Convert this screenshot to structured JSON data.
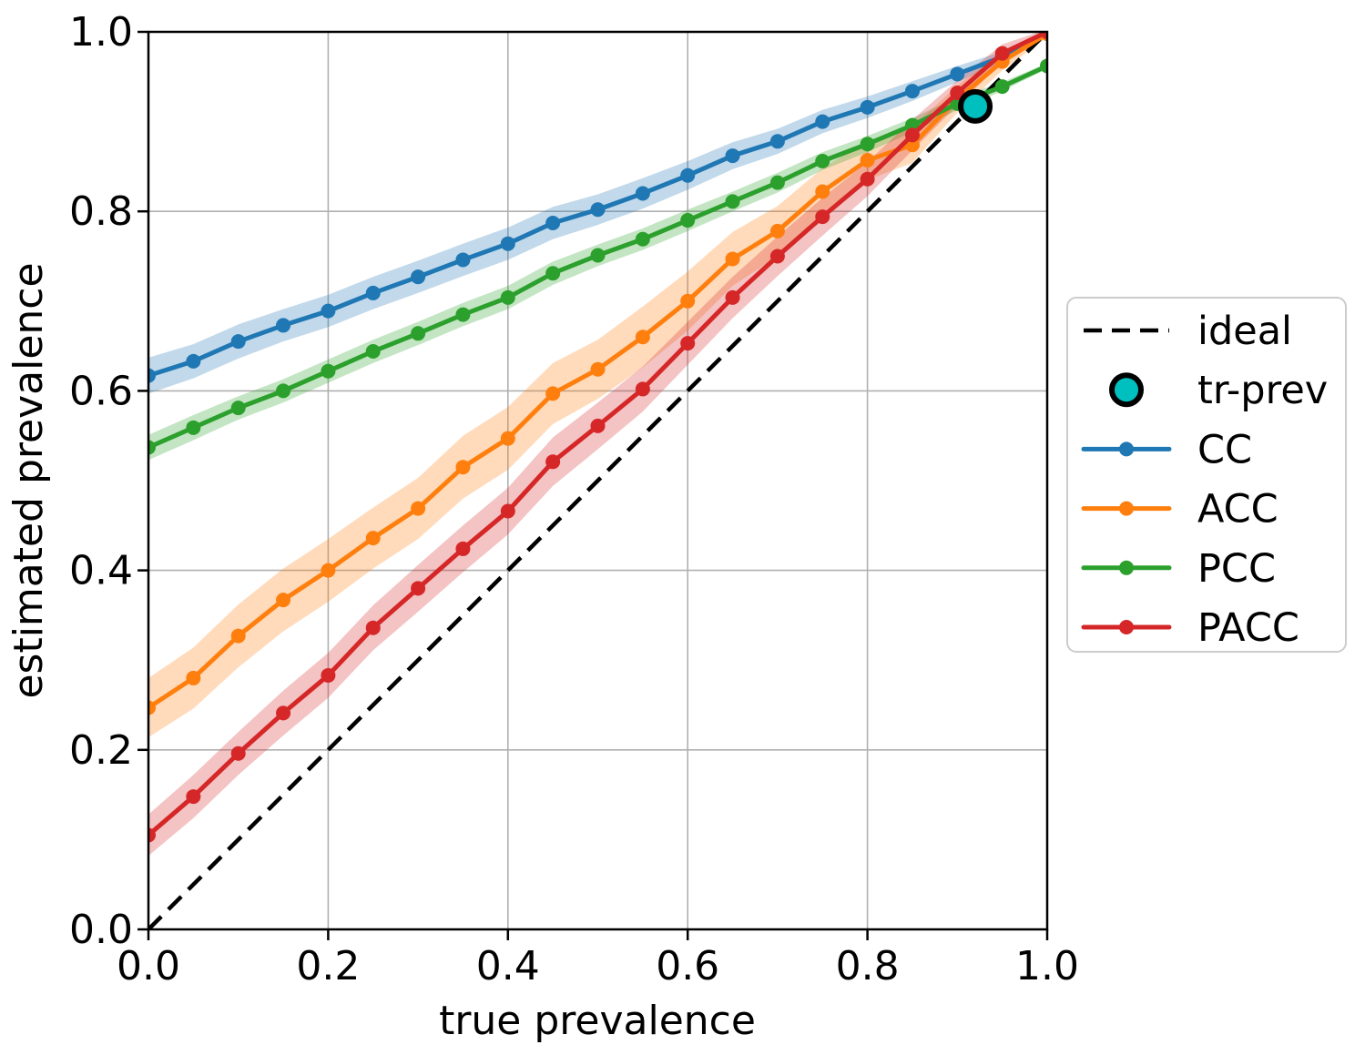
{
  "chart_data": {
    "type": "line",
    "title": "",
    "xlabel": "true prevalence",
    "ylabel": "estimated prevalence",
    "xlim": [
      0.0,
      1.0
    ],
    "ylim": [
      0.0,
      1.0
    ],
    "grid": true,
    "grid_color": "#b0b0b0",
    "spine_color": "#000000",
    "background_color": "#ffffff",
    "band_alpha": 0.28,
    "legend_position": "center-right-outside",
    "tick_values": [
      0.0,
      0.2,
      0.4,
      0.6,
      0.8,
      1.0
    ],
    "x_ticks": [
      "0.0",
      "0.2",
      "0.4",
      "0.6",
      "0.8",
      "1.0"
    ],
    "y_ticks": [
      "0.0",
      "0.2",
      "0.4",
      "0.6",
      "0.8",
      "1.0"
    ],
    "x": [
      0.0,
      0.05,
      0.1,
      0.15,
      0.2,
      0.25,
      0.3,
      0.35,
      0.4,
      0.45,
      0.5,
      0.55,
      0.6,
      0.65,
      0.7,
      0.75,
      0.8,
      0.85,
      0.9,
      0.95,
      1.0
    ],
    "series": [
      {
        "name": "CC",
        "color": "#1f77b4",
        "values": [
          0.617,
          0.633,
          0.655,
          0.673,
          0.689,
          0.709,
          0.727,
          0.746,
          0.764,
          0.787,
          0.802,
          0.82,
          0.84,
          0.862,
          0.878,
          0.9,
          0.916,
          0.934,
          0.953,
          0.972,
          0.998
        ],
        "band_halfwidth": [
          0.02,
          0.019,
          0.019,
          0.018,
          0.018,
          0.018,
          0.018,
          0.018,
          0.018,
          0.018,
          0.017,
          0.017,
          0.016,
          0.015,
          0.014,
          0.013,
          0.012,
          0.011,
          0.009,
          0.006,
          0.002
        ]
      },
      {
        "name": "ACC",
        "color": "#ff7f0e",
        "values": [
          0.247,
          0.28,
          0.327,
          0.367,
          0.4,
          0.436,
          0.469,
          0.515,
          0.547,
          0.597,
          0.624,
          0.66,
          0.7,
          0.747,
          0.778,
          0.822,
          0.857,
          0.874,
          0.925,
          0.967,
          0.998
        ],
        "band_halfwidth": [
          0.033,
          0.034,
          0.035,
          0.035,
          0.035,
          0.034,
          0.034,
          0.035,
          0.035,
          0.034,
          0.033,
          0.034,
          0.033,
          0.03,
          0.028,
          0.026,
          0.022,
          0.02,
          0.015,
          0.01,
          0.004
        ]
      },
      {
        "name": "PCC",
        "color": "#2ca02c",
        "values": [
          0.537,
          0.559,
          0.581,
          0.6,
          0.622,
          0.644,
          0.664,
          0.685,
          0.704,
          0.731,
          0.751,
          0.769,
          0.79,
          0.811,
          0.832,
          0.856,
          0.875,
          0.896,
          0.92,
          0.939,
          0.962
        ],
        "band_halfwidth": [
          0.014,
          0.014,
          0.013,
          0.013,
          0.013,
          0.013,
          0.013,
          0.013,
          0.013,
          0.013,
          0.012,
          0.012,
          0.012,
          0.011,
          0.011,
          0.01,
          0.009,
          0.008,
          0.007,
          0.005,
          0.003
        ]
      },
      {
        "name": "PACC",
        "color": "#d62728",
        "values": [
          0.105,
          0.148,
          0.196,
          0.241,
          0.283,
          0.336,
          0.38,
          0.424,
          0.466,
          0.521,
          0.561,
          0.602,
          0.653,
          0.704,
          0.75,
          0.794,
          0.836,
          0.885,
          0.932,
          0.976,
          1.0
        ],
        "band_halfwidth": [
          0.023,
          0.024,
          0.024,
          0.025,
          0.025,
          0.025,
          0.026,
          0.026,
          0.026,
          0.027,
          0.026,
          0.025,
          0.024,
          0.023,
          0.022,
          0.021,
          0.019,
          0.017,
          0.014,
          0.01,
          0.003
        ]
      }
    ],
    "ideal": {
      "label": "ideal",
      "color": "#000000",
      "style": "dashed",
      "from": [
        0.0,
        0.0
      ],
      "to": [
        1.0,
        1.0
      ]
    },
    "tr_prev": {
      "label": "tr-prev",
      "fill_color": "#00bfbf",
      "edge_color": "#000000",
      "point": [
        0.92,
        0.917
      ]
    }
  },
  "legend": {
    "items": [
      {
        "label": "ideal",
        "type": "dashed-line",
        "color": "#000000"
      },
      {
        "label": "tr-prev",
        "type": "circle",
        "color": "#00bfbf",
        "edge_color": "#000000"
      },
      {
        "label": "CC",
        "type": "line-marker",
        "color": "#1f77b4"
      },
      {
        "label": "ACC",
        "type": "line-marker",
        "color": "#ff7f0e"
      },
      {
        "label": "PCC",
        "type": "line-marker",
        "color": "#2ca02c"
      },
      {
        "label": "PACC",
        "type": "line-marker",
        "color": "#d62728"
      }
    ],
    "border_color": "#cccccc",
    "background_color": "#ffffff"
  }
}
